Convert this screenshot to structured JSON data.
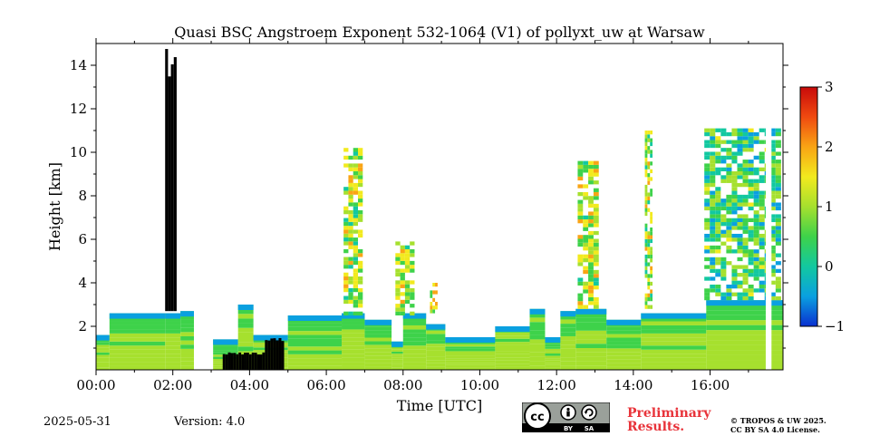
{
  "chart_data": {
    "type": "heatmap",
    "title": "Quasi BSC Angstroem Exponent 532-1064 (V1) of pollyxt_uw at Warsaw",
    "xlabel": "Time [UTC]",
    "ylabel": "Height [km]",
    "x_range_hours": [
      0,
      17.9
    ],
    "ylim": [
      0,
      15
    ],
    "x_ticks": [
      "00:00",
      "02:00",
      "04:00",
      "06:00",
      "08:00",
      "10:00",
      "12:00",
      "14:00",
      "16:00"
    ],
    "x_tick_values": [
      0,
      2,
      4,
      6,
      8,
      10,
      12,
      14,
      16
    ],
    "y_ticks": [
      "2",
      "4",
      "6",
      "8",
      "10",
      "12",
      "14"
    ],
    "y_tick_values": [
      2,
      4,
      6,
      8,
      10,
      12,
      14
    ],
    "colorbar": {
      "min": -1,
      "max": 3,
      "ticks": [
        "−1",
        "0",
        "1",
        "2",
        "3"
      ],
      "tick_values": [
        -1,
        0,
        1,
        2,
        3
      ],
      "colors": [
        "#0a30d0",
        "#0aa0e0",
        "#12c8a0",
        "#3ed24a",
        "#a6e02e",
        "#f2ea1e",
        "#f9a414",
        "#f04a10",
        "#c80a0a"
      ]
    },
    "cloud_color": "#000000",
    "layers": [
      {
        "from": 0.0,
        "to": 0.35,
        "top_km": 1.6
      },
      {
        "from": 0.35,
        "to": 1.8,
        "top_km": 2.6
      },
      {
        "from": 1.8,
        "to": 2.2,
        "top_km": 2.6
      },
      {
        "from": 2.2,
        "to": 2.55,
        "top_km": 2.7
      },
      {
        "from": 3.05,
        "to": 3.7,
        "top_km": 1.4
      },
      {
        "from": 3.7,
        "to": 4.1,
        "top_km": 3.0
      },
      {
        "from": 4.1,
        "to": 5.0,
        "top_km": 1.6
      },
      {
        "from": 5.0,
        "to": 6.4,
        "top_km": 2.5
      },
      {
        "from": 6.4,
        "to": 7.0,
        "top_km": 2.6
      },
      {
        "from": 7.0,
        "to": 7.7,
        "top_km": 2.3
      },
      {
        "from": 7.7,
        "to": 8.0,
        "top_km": 1.3
      },
      {
        "from": 8.0,
        "to": 8.6,
        "top_km": 2.6
      },
      {
        "from": 8.6,
        "to": 9.1,
        "top_km": 2.1
      },
      {
        "from": 9.1,
        "to": 10.4,
        "top_km": 1.5
      },
      {
        "from": 10.4,
        "to": 11.3,
        "top_km": 2.0
      },
      {
        "from": 11.3,
        "to": 11.7,
        "top_km": 2.8
      },
      {
        "from": 11.7,
        "to": 12.1,
        "top_km": 1.5
      },
      {
        "from": 12.1,
        "to": 12.5,
        "top_km": 2.7
      },
      {
        "from": 12.5,
        "to": 13.3,
        "top_km": 2.8
      },
      {
        "from": 13.3,
        "to": 14.2,
        "top_km": 2.3
      },
      {
        "from": 14.2,
        "to": 15.9,
        "top_km": 2.6
      },
      {
        "from": 15.9,
        "to": 17.9,
        "top_km": 3.2
      }
    ],
    "plumes": [
      {
        "from": 6.45,
        "to": 6.95,
        "bottom_km": 2.5,
        "top_km": 10.2,
        "level": 1.0
      },
      {
        "from": 7.8,
        "to": 8.3,
        "bottom_km": 2.5,
        "top_km": 5.9,
        "level": 1.0
      },
      {
        "from": 8.7,
        "to": 8.9,
        "bottom_km": 2.6,
        "top_km": 4.0,
        "level": 1.4
      },
      {
        "from": 12.55,
        "to": 13.1,
        "bottom_km": 2.8,
        "top_km": 9.6,
        "level": 1.1
      },
      {
        "from": 14.3,
        "to": 14.5,
        "bottom_km": 2.8,
        "top_km": 11.0,
        "level": 1.0
      },
      {
        "from": 15.85,
        "to": 17.85,
        "bottom_km": 3.2,
        "top_km": 11.1,
        "level": 0.4
      }
    ],
    "clouds": [
      {
        "from": 1.8,
        "to": 2.1,
        "bottom_km": 2.7,
        "top_km": 14.9
      },
      {
        "from": 3.3,
        "to": 4.4,
        "bottom_km": 0.0,
        "top_km": 0.8
      },
      {
        "from": 4.4,
        "to": 4.9,
        "bottom_km": 0.0,
        "top_km": 1.5
      }
    ],
    "gaps": [
      {
        "from": 2.57,
        "to": 2.72
      },
      {
        "from": 2.8,
        "to": 3.02
      },
      {
        "from": 17.45,
        "to": 17.6
      }
    ]
  },
  "footer": {
    "date": "2025-05-31",
    "version": "Version: 4.0",
    "preliminary": "Preliminary\nResults.",
    "license_line1": "© TROPOS & UW 2025.",
    "license_line2": "CC BY SA 4.0 License.",
    "cc_by": "BY",
    "cc_sa": "SA"
  }
}
